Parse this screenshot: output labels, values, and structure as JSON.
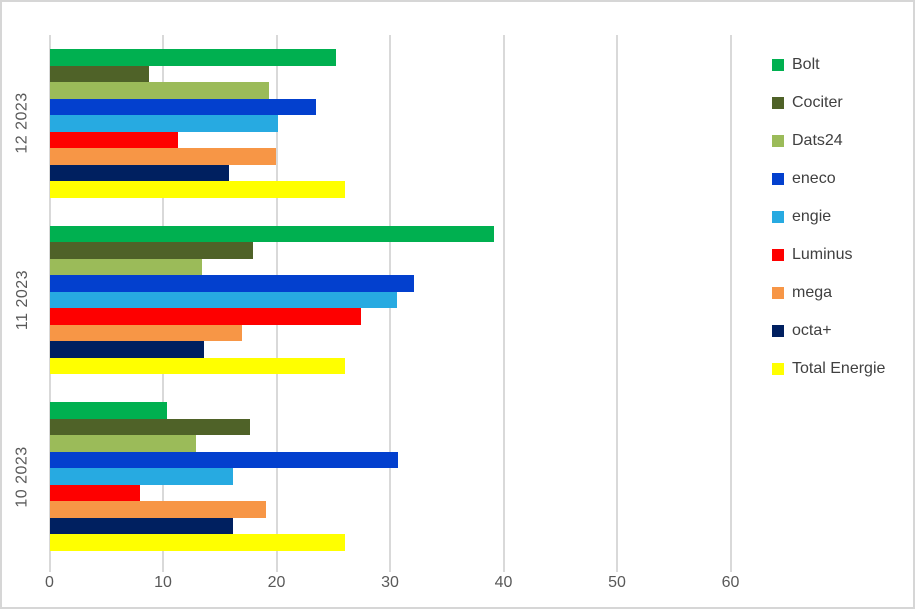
{
  "chart_data": {
    "type": "bar",
    "orientation": "horizontal",
    "title": "",
    "xlabel": "",
    "ylabel": "",
    "categories": [
      "12 2023",
      "11 2023",
      "10 2023"
    ],
    "series": [
      {
        "name": "Bolt",
        "color": "#00B050",
        "values": [
          25.2,
          39.1,
          10.3
        ]
      },
      {
        "name": "Cociter",
        "color": "#4F6228",
        "values": [
          8.7,
          17.9,
          17.6
        ]
      },
      {
        "name": "Dats24",
        "color": "#9BBB59",
        "values": [
          19.3,
          13.4,
          12.9
        ]
      },
      {
        "name": "eneco",
        "color": "#0340CE",
        "values": [
          23.4,
          32.1,
          30.7
        ]
      },
      {
        "name": "engie",
        "color": "#27AAE1",
        "values": [
          20.1,
          30.6,
          16.1
        ]
      },
      {
        "name": "Luminus",
        "color": "#FE0000",
        "values": [
          11.3,
          27.4,
          7.9
        ]
      },
      {
        "name": "mega",
        "color": "#F79646",
        "values": [
          19.9,
          16.9,
          19.0
        ]
      },
      {
        "name": "octa+",
        "color": "#002060",
        "values": [
          15.8,
          13.6,
          16.1
        ]
      },
      {
        "name": "Total Energie",
        "color": "#FFFF00",
        "values": [
          26.0,
          26.0,
          26.0
        ]
      }
    ],
    "x_ticks": [
      0,
      10,
      20,
      30,
      40,
      50,
      60
    ],
    "xlim": [
      0,
      60
    ],
    "grid": true,
    "legend_position": "right"
  },
  "colors": {
    "gridline": "#d9d9d9",
    "axis_text": "#595959",
    "legend_text": "#404040",
    "border": "#d6d6d6",
    "background": "#ffffff"
  }
}
